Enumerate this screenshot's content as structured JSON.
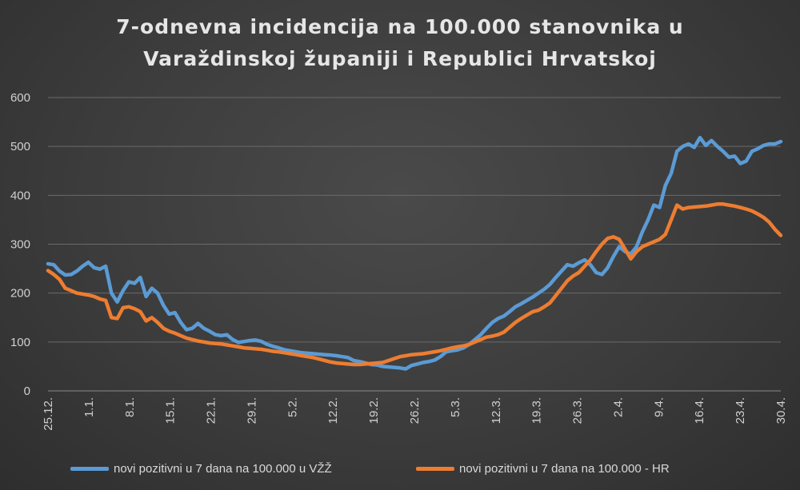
{
  "chart_data": {
    "type": "line",
    "title_line1": "7-odnevna incidencija na 100.000 stanovnika u",
    "title_line2": "Varaždinskoj županiji i Republici Hrvatskoj",
    "xlabel": "",
    "ylabel": "",
    "ylim": [
      0,
      600
    ],
    "yticks": [
      0,
      100,
      200,
      300,
      400,
      500,
      600
    ],
    "x_ticks": [
      "25.12.",
      "1.1.",
      "8.1.",
      "15.1.",
      "22.1.",
      "29.1.",
      "5.2.",
      "12.2.",
      "19.2.",
      "26.2.",
      "5.3.",
      "12.3.",
      "19.3.",
      "26.3.",
      "2.4.",
      "9.4.",
      "16.4.",
      "23.4.",
      "30.4."
    ],
    "grid": true,
    "legend_position": "bottom",
    "series": [
      {
        "name": "novi pozitivni u 7 dana na 100.000 u VŽŽ",
        "color": "#5b9bd5",
        "values": [
          260,
          258,
          245,
          237,
          238,
          245,
          255,
          263,
          252,
          249,
          255,
          200,
          182,
          205,
          223,
          220,
          232,
          193,
          210,
          200,
          175,
          157,
          160,
          140,
          125,
          128,
          138,
          128,
          122,
          115,
          113,
          115,
          105,
          99,
          101,
          103,
          104,
          101,
          95,
          91,
          88,
          84,
          82,
          80,
          78,
          77,
          76,
          75,
          74,
          73,
          72,
          70,
          68,
          62,
          60,
          57,
          54,
          53,
          50,
          49,
          48,
          47,
          45,
          52,
          55,
          58,
          60,
          63,
          70,
          80,
          82,
          84,
          88,
          95,
          105,
          115,
          128,
          140,
          148,
          153,
          162,
          172,
          178,
          185,
          192,
          200,
          208,
          218,
          232,
          245,
          258,
          255,
          262,
          268,
          258,
          242,
          238,
          252,
          275,
          295,
          285,
          280,
          295,
          325,
          350,
          380,
          375,
          420,
          445,
          490,
          500,
          505,
          498,
          518,
          502,
          512,
          500,
          490,
          478,
          480,
          465,
          470,
          490,
          495,
          502,
          505,
          505,
          510
        ]
      },
      {
        "name": "novi pozitivni u 7 dana na 100.000 - HR",
        "color": "#ed7d31",
        "values": [
          246,
          238,
          228,
          210,
          205,
          200,
          198,
          196,
          193,
          188,
          185,
          150,
          148,
          170,
          172,
          168,
          162,
          143,
          150,
          140,
          128,
          122,
          118,
          113,
          108,
          105,
          102,
          100,
          98,
          97,
          96,
          94,
          92,
          90,
          88,
          87,
          86,
          85,
          83,
          81,
          80,
          78,
          76,
          74,
          72,
          70,
          68,
          65,
          62,
          59,
          57,
          56,
          55,
          54,
          54,
          55,
          56,
          57,
          58,
          62,
          66,
          70,
          72,
          74,
          75,
          76,
          78,
          80,
          82,
          85,
          88,
          90,
          92,
          95,
          100,
          105,
          110,
          112,
          115,
          120,
          130,
          140,
          148,
          155,
          162,
          165,
          172,
          180,
          195,
          210,
          225,
          235,
          242,
          255,
          268,
          285,
          300,
          312,
          315,
          310,
          290,
          270,
          285,
          295,
          300,
          305,
          310,
          320,
          350,
          380,
          372,
          375,
          376,
          377,
          378,
          380,
          382,
          382,
          380,
          378,
          375,
          372,
          368,
          362,
          355,
          345,
          330,
          318
        ]
      }
    ]
  }
}
